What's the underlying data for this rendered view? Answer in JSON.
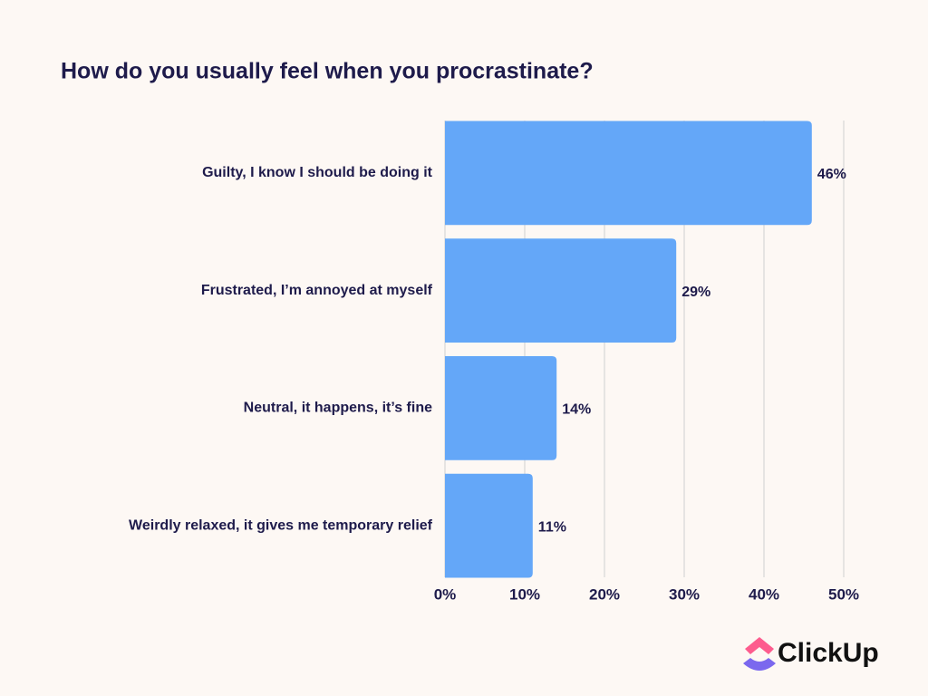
{
  "chart_data": {
    "type": "hbar",
    "title": "How do you usually feel when you procrastinate?",
    "categories": [
      "Guilty, I know I should be doing it",
      "Frustrated, I’m annoyed at myself",
      "Neutral, it happens, it’s fine",
      "Weirdly relaxed, it gives me temporary relief"
    ],
    "values": [
      46,
      29,
      14,
      11
    ],
    "value_labels": [
      "46%",
      "29%",
      "14%",
      "11%"
    ],
    "color": "#64a7f8",
    "xlim": [
      0,
      50
    ],
    "xticks": [
      {
        "value": 0,
        "label": "0%"
      },
      {
        "value": 10,
        "label": "10%"
      },
      {
        "value": 20,
        "label": "20%"
      },
      {
        "value": 30,
        "label": "30%"
      },
      {
        "value": 40,
        "label": "40%"
      },
      {
        "value": 50,
        "label": "50%"
      }
    ],
    "grid": true
  },
  "brand": "ClickUp"
}
